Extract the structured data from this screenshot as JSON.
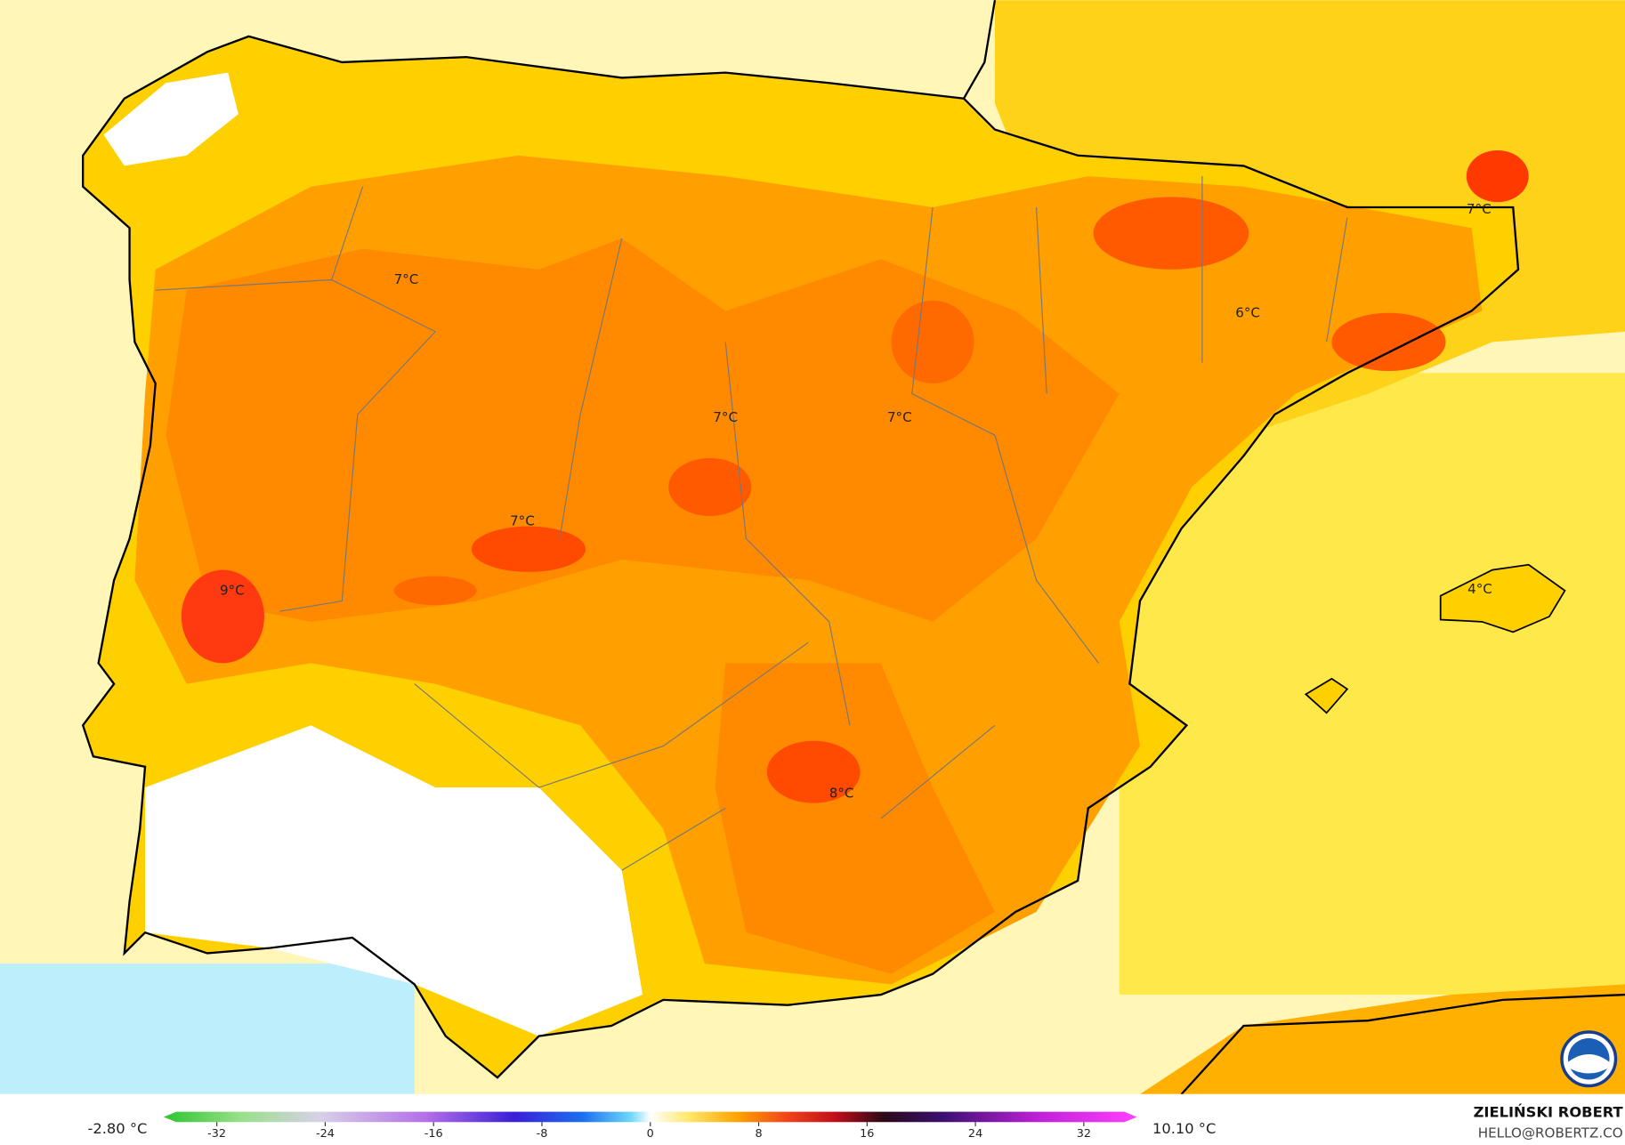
{
  "contour_labels": [
    "7°C",
    "6°C",
    "7°C",
    "7°C",
    "7°C",
    "7°C",
    "9°C",
    "4°C",
    "8°C"
  ],
  "colorbar": {
    "min_label": "-2.80 °C",
    "max_label": "10.10 °C",
    "lim": [
      -35,
      35
    ],
    "ticks": [
      -32,
      -24,
      -16,
      -8,
      0,
      8,
      16,
      24,
      32
    ]
  },
  "credit": {
    "name": "ZIELIŃSKI ROBERT",
    "email": "HELLO@ROBERTZ.CO"
  }
}
